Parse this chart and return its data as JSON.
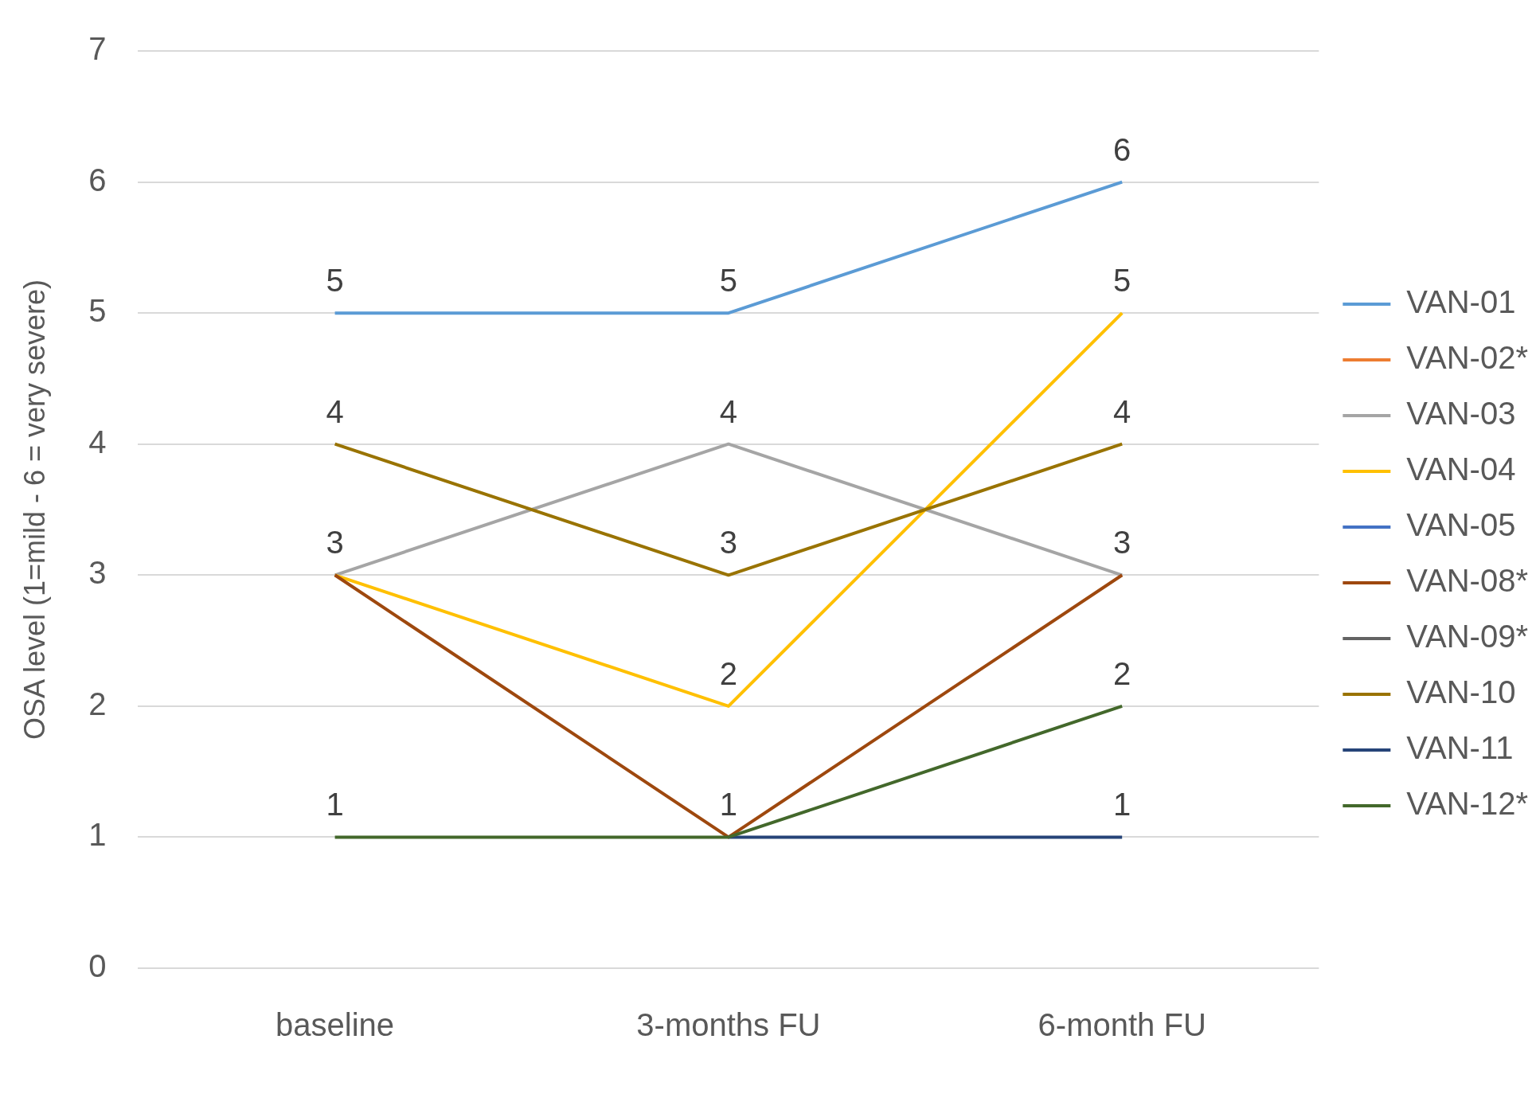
{
  "chart_data": {
    "type": "line",
    "ylabel": "OSA level (1=mild - 6 = very severe)",
    "categories": [
      "baseline",
      "3-months FU",
      "6-month FU"
    ],
    "series": [
      {
        "name": "VAN-01",
        "color": "#5b9bd5",
        "values": [
          5,
          5,
          6
        ],
        "value_labels": [
          "5",
          "5",
          "6"
        ]
      },
      {
        "name": "VAN-02*",
        "color": "#ed7d31",
        "values": [
          null,
          null,
          null
        ]
      },
      {
        "name": "VAN-03",
        "color": "#a5a5a5",
        "values": [
          3,
          4,
          3
        ],
        "value_labels": [
          "3",
          "4",
          "3"
        ]
      },
      {
        "name": "VAN-04",
        "color": "#ffc000",
        "values": [
          3,
          2,
          5
        ],
        "value_labels": [
          null,
          "2",
          "5"
        ]
      },
      {
        "name": "VAN-05",
        "color": "#4472c4",
        "values": [
          null,
          null,
          null
        ]
      },
      {
        "name": "VAN-08*",
        "color": "#9e480e",
        "values": [
          3,
          1,
          3
        ]
      },
      {
        "name": "VAN-09*",
        "color": "#636363",
        "values": [
          null,
          null,
          null
        ]
      },
      {
        "name": "VAN-10",
        "color": "#997300",
        "values": [
          4,
          3,
          4
        ],
        "value_labels": [
          "4",
          "3",
          "4"
        ]
      },
      {
        "name": "VAN-11",
        "color": "#264478",
        "values": [
          null,
          1,
          1
        ],
        "value_labels": [
          null,
          "1",
          "1"
        ]
      },
      {
        "name": "VAN-12*",
        "color": "#43682b",
        "values": [
          1,
          1,
          2
        ],
        "value_labels": [
          "1",
          null,
          "2"
        ]
      }
    ],
    "ylim": [
      0,
      7
    ],
    "yticks": [
      0,
      1,
      2,
      3,
      4,
      5,
      6,
      7
    ],
    "grid": "y",
    "legend": "right",
    "marker": "none",
    "line_style": "solid"
  }
}
